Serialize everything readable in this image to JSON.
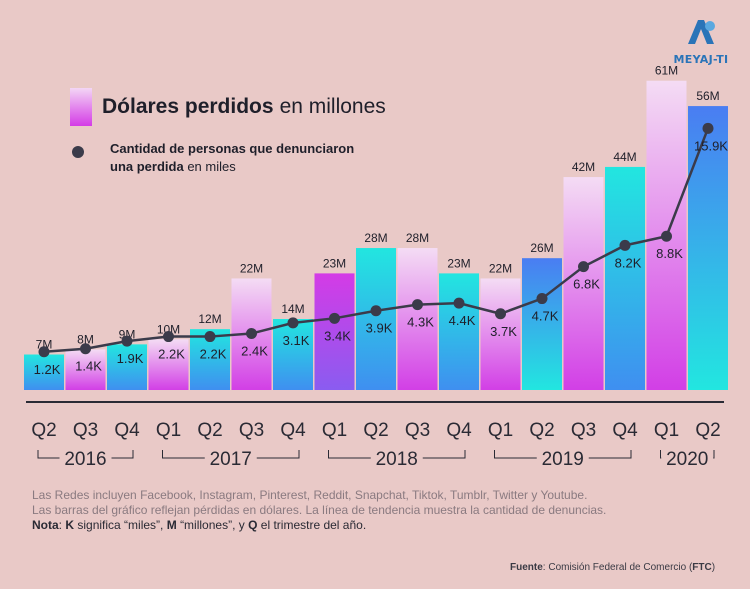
{
  "logo": {
    "brand": "MEYAJ-TI"
  },
  "legend": {
    "bars_bold": "Dólares perdidos",
    "bars_light": "en millones",
    "line_bold_1": "Cantidad de personas que denunciaron",
    "line_bold_2": "una perdida",
    "line_light": "en miles"
  },
  "notes": {
    "line1": "Las Redes incluyen Facebook, Instagram, Pinterest, Reddit, Snapchat, Tiktok, Tumblr, Twitter y Youtube.",
    "line2": "Las barras del gráfico reflejan pérdidas en dólares. La línea de tendencia muestra la cantidad de denuncias.",
    "nota_label": "Nota",
    "nota_k": "K",
    "nota_k_text": "significa “miles”,",
    "nota_m": "M",
    "nota_m_text": "“millones”, y",
    "nota_q": "Q",
    "nota_q_text": "el trimestre del año."
  },
  "source": {
    "label": "Fuente",
    "text": "Comisión Federal de Comercio (",
    "abbr": "FTC",
    "close": ")"
  },
  "chart_data": {
    "type": "bar",
    "categories": [
      "Q2",
      "Q3",
      "Q4",
      "Q1",
      "Q2",
      "Q3",
      "Q4",
      "Q1",
      "Q2",
      "Q3",
      "Q4",
      "Q1",
      "Q2",
      "Q3",
      "Q4",
      "Q1",
      "Q2"
    ],
    "years": [
      {
        "label": "2016",
        "start": 0,
        "end": 2
      },
      {
        "label": "2017",
        "start": 3,
        "end": 6
      },
      {
        "label": "2018",
        "start": 7,
        "end": 10
      },
      {
        "label": "2019",
        "start": 11,
        "end": 14
      },
      {
        "label": "2020",
        "start": 15,
        "end": 16
      }
    ],
    "series": [
      {
        "name": "Dólares perdidos",
        "kind": "bar",
        "values": [
          7,
          8,
          9,
          10,
          12,
          22,
          14,
          23,
          28,
          28,
          23,
          22,
          26,
          42,
          44,
          61,
          56
        ],
        "labels": [
          "7M",
          "8M",
          "9M",
          "10M",
          "12M",
          "22M",
          "14M",
          "23M",
          "28M",
          "28M",
          "23M",
          "22M",
          "26M",
          "42M",
          "44M",
          "61M",
          "56M"
        ]
      },
      {
        "name": "Cantidad de personas que denunciaron una perdida",
        "kind": "line",
        "values": [
          1.2,
          1.4,
          1.9,
          2.2,
          2.2,
          2.4,
          3.1,
          3.4,
          3.9,
          4.3,
          4.4,
          3.7,
          4.7,
          6.8,
          8.2,
          8.8,
          15.9
        ],
        "labels": [
          "1.2K",
          "1.4K",
          "1.9K",
          "2.2K",
          "2.2K",
          "2.4K",
          "3.1K",
          "3.4K",
          "3.9K",
          "4.3K",
          "4.4K",
          "3.7K",
          "4.7K",
          "6.8K",
          "8.2K",
          "8.8K",
          "15.9K"
        ]
      }
    ],
    "bar_styles": [
      "cyan",
      "pink",
      "cyan",
      "pink",
      "cyan",
      "pink",
      "cyan",
      "magenta",
      "cyan",
      "pink",
      "cyan",
      "pink",
      "blue",
      "pink",
      "cyan",
      "pink",
      "blue"
    ],
    "colors": {
      "cyan_top": "#22e6e0",
      "cyan_bottom": "#3f8ff0",
      "pink_top": "#f4dcf4",
      "pink_bottom": "#d23fe6",
      "magenta_top": "#d43be6",
      "magenta_bottom": "#8a5cf0",
      "blue_top": "#4a7df2",
      "blue_bottom": "#22e6e0",
      "line": "#3b3b4a",
      "axis": "#2a2a34",
      "text": "#1f1f2a"
    }
  }
}
